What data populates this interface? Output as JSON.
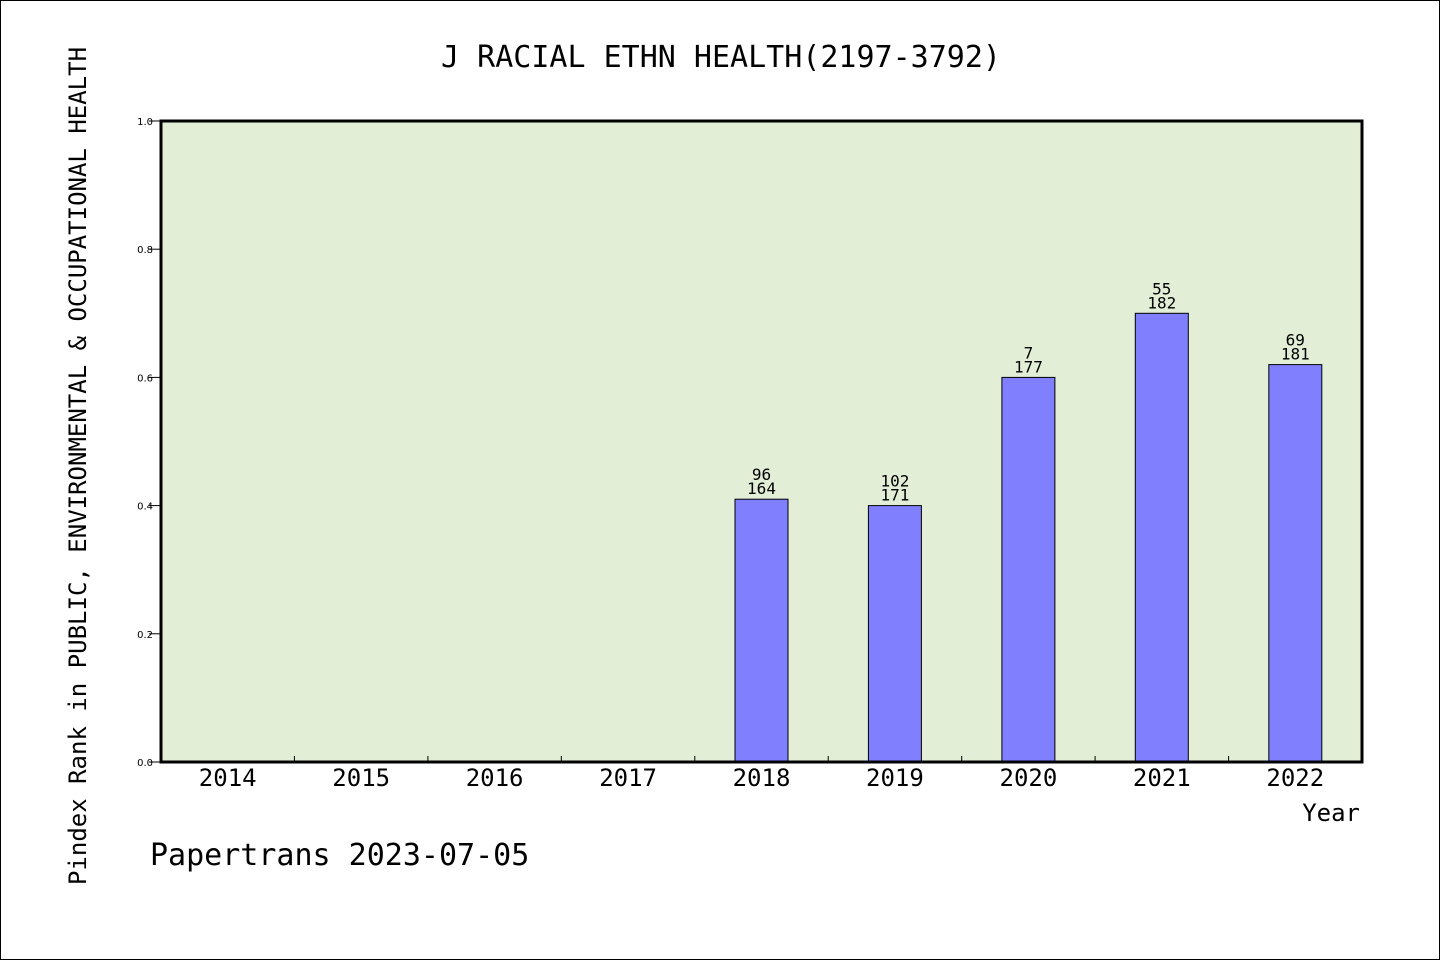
{
  "chart_data": {
    "type": "bar",
    "title": "J RACIAL ETHN HEALTH(2197-3792)",
    "xlabel": "Year",
    "ylabel": "Pindex Rank in PUBLIC, ENVIRONMENTAL & OCCUPATIONAL HEALTH",
    "ylim": [
      0,
      1.0
    ],
    "yticks": [
      "0.0",
      "0.2",
      "0.4",
      "0.6",
      "0.8",
      "1.0"
    ],
    "categories": [
      "2014",
      "2015",
      "2016",
      "2017",
      "2018",
      "2019",
      "2020",
      "2021",
      "2022"
    ],
    "values": [
      null,
      null,
      null,
      null,
      0.41,
      0.4,
      0.6,
      0.7,
      0.62
    ],
    "labels_top": [
      "",
      "",
      "",
      "",
      "96",
      "102",
      "7",
      "55",
      "69"
    ],
    "labels_bottom": [
      "",
      "",
      "",
      "",
      "164",
      "171",
      "177",
      "182",
      "181"
    ],
    "plot_background": "#e2efd6",
    "bar_color": "#8080ff",
    "grid": false
  },
  "footer": "Papertrans 2023-07-05"
}
